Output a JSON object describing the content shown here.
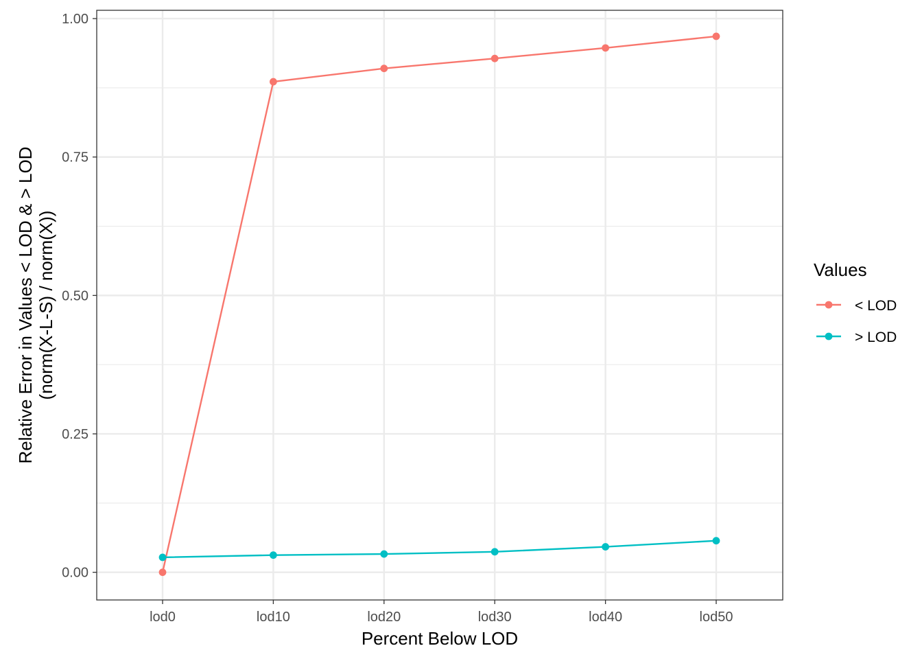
{
  "chart_data": {
    "type": "line",
    "categories": [
      "lod0",
      "lod10",
      "lod20",
      "lod30",
      "lod40",
      "lod50"
    ],
    "series": [
      {
        "name": "< LOD",
        "color": "#F8766D",
        "values": [
          0.0,
          0.886,
          0.91,
          0.928,
          0.947,
          0.968
        ]
      },
      {
        "name": "> LOD",
        "color": "#00BFC4",
        "values": [
          0.027,
          0.031,
          0.033,
          0.037,
          0.046,
          0.057
        ]
      }
    ],
    "xlabel": "Percent Below LOD",
    "ylabel_lines": [
      "Relative Error in Values < LOD & > LOD",
      "(norm(X-L-S) / norm(X))"
    ],
    "ylim": [
      -0.05,
      1.015
    ],
    "yticks": [
      0.0,
      0.25,
      0.5,
      0.75,
      1.0
    ],
    "ytick_labels": [
      "0.00",
      "0.25",
      "0.50",
      "0.75",
      "1.00"
    ],
    "grid": true,
    "theme": "bw",
    "legend": {
      "title": "Values",
      "position": "right"
    }
  }
}
